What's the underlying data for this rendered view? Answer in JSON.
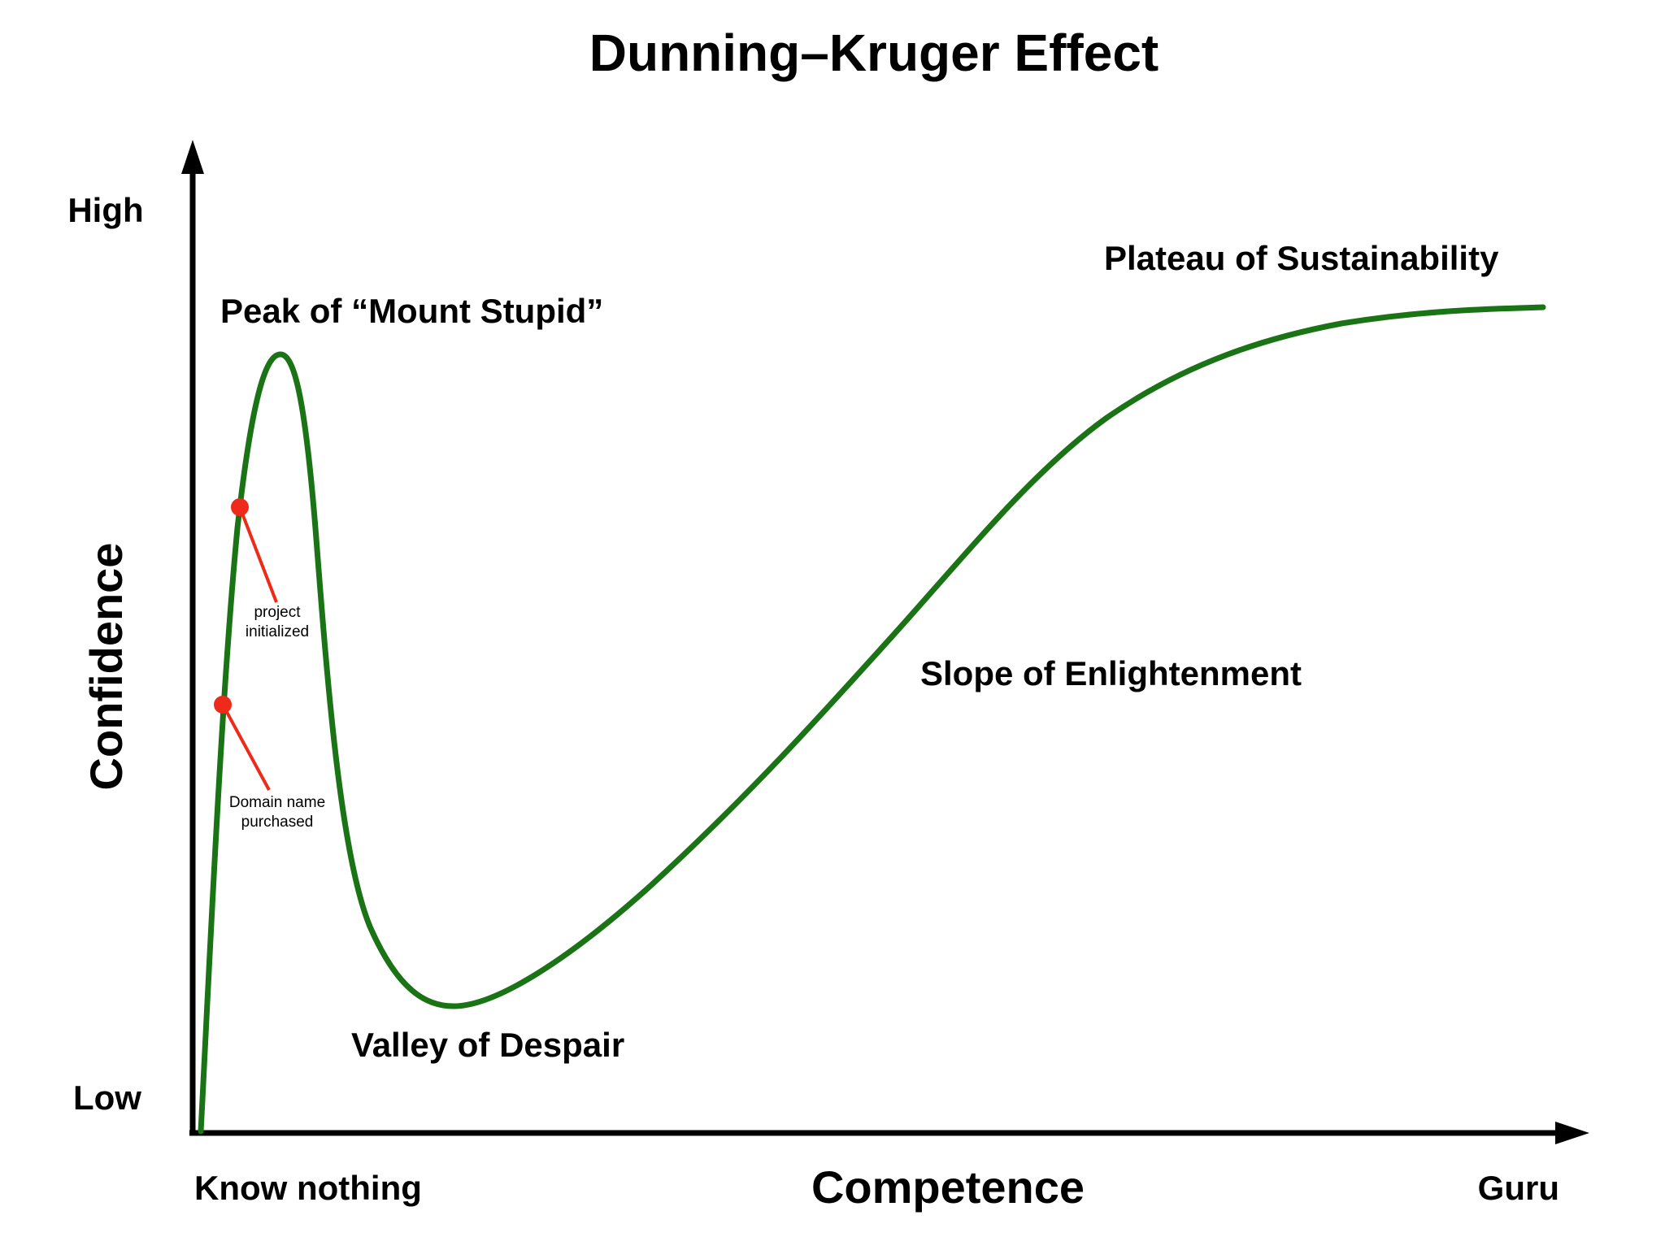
{
  "title": "Dunning–Kruger Effect",
  "y_axis": {
    "label": "Confidence",
    "high": "High",
    "low": "Low"
  },
  "x_axis": {
    "label": "Competence",
    "start": "Know nothing",
    "end": "Guru"
  },
  "stages": {
    "peak": "Peak of “Mount Stupid”",
    "valley": "Valley of Despair",
    "slope": "Slope of Enlightenment",
    "plateau": "Plateau of Sustainability"
  },
  "markers": [
    {
      "line1": "project",
      "line2": "initialized"
    },
    {
      "line1": "Domain name",
      "line2": "purchased"
    }
  ],
  "colors": {
    "curve": "#1a7314",
    "marker": "#ee2a1b",
    "axis": "#000000"
  }
}
